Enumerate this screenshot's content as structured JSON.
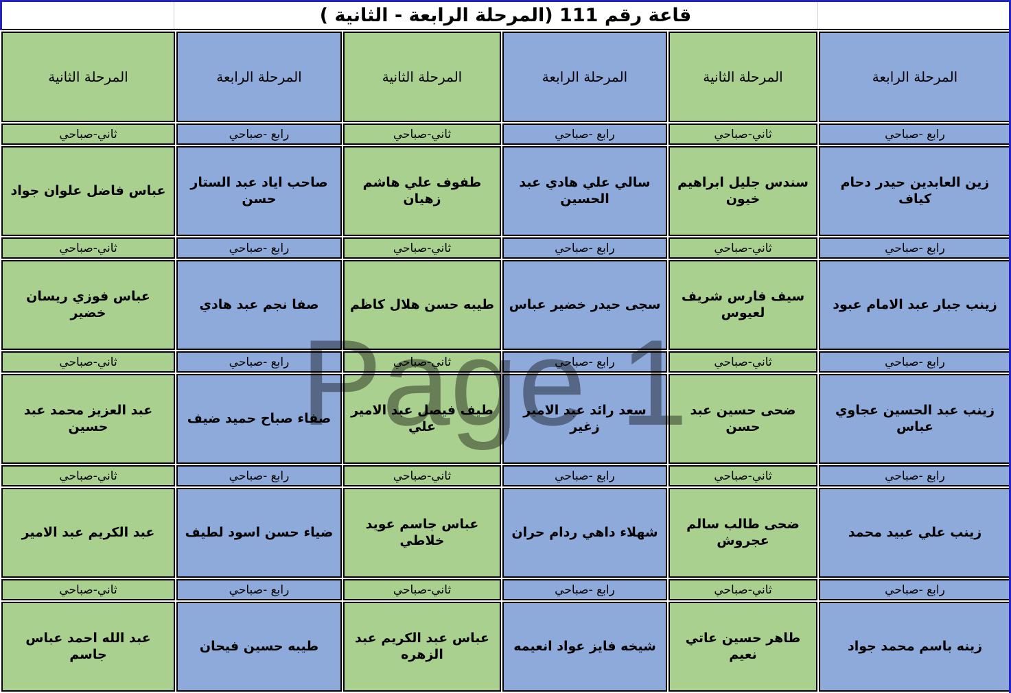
{
  "title": "قاعة رقم 111 (المرحلة الرابعة - الثانية )",
  "watermark": "Page 1",
  "colors": {
    "green": "#A9D08E",
    "blue": "#8EAADB",
    "border": "#000000",
    "page_break_line_blue": "#2323C8",
    "watermark_gray": "#9B9B9B"
  },
  "columns": [
    {
      "stage": "المرحلة الرابعة",
      "color": "blue",
      "session_label": "رابع -صباحي",
      "students": [
        "زين العابدين حيدر دحام كياف",
        "زينب جبار عبد الامام عبود",
        "زينب عبد الحسين عجاوي عباس",
        "زينب علي عبيد محمد",
        "زينه باسم محمد جواد"
      ]
    },
    {
      "stage": "المرحلة الثانية",
      "color": "green",
      "session_label": "ثاني-صباحي",
      "students": [
        "سندس جليل ابراهيم خيون",
        "سيف فارس شريف لعيوس",
        "ضحى حسين عبد حسن",
        "ضحى طالب سالم عجروش",
        "طاهر حسين عاتي نعيم"
      ]
    },
    {
      "stage": "المرحلة الرابعة",
      "color": "blue",
      "session_label": "رابع -صباحي",
      "students": [
        "سالي علي هادي عبد الحسين",
        "سجى حيدر خضير عباس",
        "سعد رائد عبد الامير زغير",
        "شهلاء داهي ردام حران",
        "شيخه فايز عواد انعيمه"
      ]
    },
    {
      "stage": "المرحلة الثانية",
      "color": "green",
      "session_label": "ثاني-صباحي",
      "students": [
        "طفوف علي هاشم زهيان",
        "طيبه حسن هلال كاظم",
        "طيف فيصل عبد الامير علي",
        "عباس جاسم عويد خلاطي",
        "عباس عبد الكريم عبد الزهره"
      ]
    },
    {
      "stage": "المرحلة الرابعة",
      "color": "blue",
      "session_label": "رابع -صباحي",
      "students": [
        "صاحب اياد عبد الستار حسن",
        "صفا نجم عبد هادي",
        "صفاء صباح حميد ضيف",
        "ضياء حسن اسود لطيف",
        "طيبه حسين فيحان"
      ]
    },
    {
      "stage": "المرحلة الثانية",
      "color": "green",
      "session_label": "ثاني-صباحي",
      "students": [
        "عباس فاضل علوان جواد",
        "عباس فوزي ريسان خضير",
        "عبد العزيز محمد عبد حسين",
        "عبد الكريم عبد الامير",
        "عبد الله احمد عباس جاسم"
      ]
    }
  ]
}
